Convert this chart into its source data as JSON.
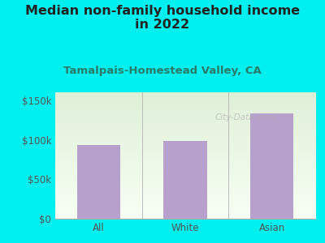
{
  "title": "Median non-family household income\nin 2022",
  "subtitle": "Tamalpais-Homestead Valley, CA",
  "categories": [
    "All",
    "White",
    "Asian"
  ],
  "values": [
    93000,
    98000,
    133000
  ],
  "bar_color": "#b8a0cc",
  "background_outer": "#00f0f0",
  "background_inner_top": "#dff0d8",
  "background_inner_bottom": "#f8fff4",
  "title_color": "#222222",
  "subtitle_color": "#2a7a6a",
  "axis_color": "#888888",
  "tick_color": "#555555",
  "ylabel_ticks": [
    0,
    50000,
    100000,
    150000
  ],
  "ylabel_labels": [
    "$0",
    "$50k",
    "$100k",
    "$150k"
  ],
  "ylim": [
    0,
    160000
  ],
  "watermark": "City-Data.com",
  "title_fontsize": 11.5,
  "subtitle_fontsize": 9.5,
  "tick_fontsize": 8.5
}
